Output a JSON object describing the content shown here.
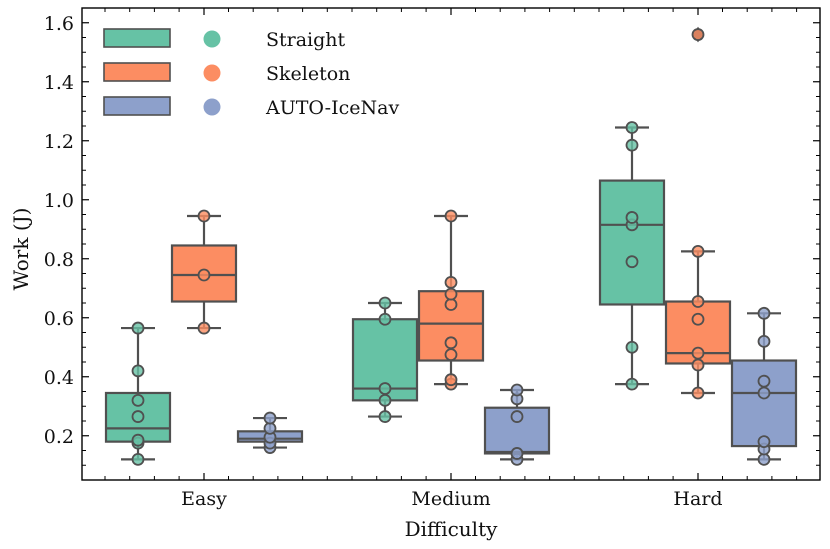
{
  "chart_data": {
    "type": "box",
    "xlabel": "Difficulty",
    "ylabel": "Work (J)",
    "ylim": [
      0.05,
      1.65
    ],
    "yticks": [
      0.2,
      0.4,
      0.6,
      0.8,
      1.0,
      1.2,
      1.4,
      1.6
    ],
    "ytick_labels": [
      "0.2",
      "0.4",
      "0.6",
      "0.8",
      "1.0",
      "1.2",
      "1.4",
      "1.6"
    ],
    "categories": [
      "Easy",
      "Medium",
      "Hard"
    ],
    "legend_position": "top-left",
    "series": [
      {
        "name": "Straight",
        "color": "#66c2a5",
        "box": [
          {
            "q1": 0.18,
            "median": 0.225,
            "q3": 0.345,
            "whisker_low": 0.12,
            "whisker_high": 0.565,
            "outliers": []
          },
          {
            "q1": 0.32,
            "median": 0.36,
            "q3": 0.595,
            "whisker_low": 0.265,
            "whisker_high": 0.65,
            "outliers": []
          },
          {
            "q1": 0.645,
            "median": 0.915,
            "q3": 1.065,
            "whisker_low": 0.375,
            "whisker_high": 1.245,
            "outliers": []
          }
        ],
        "points": [
          [
            0.12,
            0.175,
            0.185,
            0.265,
            0.32,
            0.42,
            0.565
          ],
          [
            0.265,
            0.32,
            0.36,
            0.595,
            0.65
          ],
          [
            0.375,
            0.5,
            0.79,
            0.915,
            0.94,
            1.185,
            1.245
          ]
        ]
      },
      {
        "name": "Skeleton",
        "color": "#fc8d62",
        "box": [
          {
            "q1": 0.655,
            "median": 0.745,
            "q3": 0.845,
            "whisker_low": 0.565,
            "whisker_high": 0.945,
            "outliers": []
          },
          {
            "q1": 0.455,
            "median": 0.58,
            "q3": 0.69,
            "whisker_low": 0.375,
            "whisker_high": 0.945,
            "outliers": []
          },
          {
            "q1": 0.445,
            "median": 0.48,
            "q3": 0.655,
            "whisker_low": 0.345,
            "whisker_high": 0.825,
            "outliers": [
              1.56
            ]
          }
        ],
        "points": [
          [
            0.565,
            0.745,
            0.945
          ],
          [
            0.375,
            0.39,
            0.475,
            0.515,
            0.645,
            0.68,
            0.72,
            0.945
          ],
          [
            0.345,
            0.44,
            0.48,
            0.595,
            0.655,
            0.825,
            1.56
          ]
        ]
      },
      {
        "name": "AUTO-IceNav",
        "color": "#8da0cb",
        "box": [
          {
            "q1": 0.18,
            "median": 0.19,
            "q3": 0.215,
            "whisker_low": 0.16,
            "whisker_high": 0.26,
            "outliers": []
          },
          {
            "q1": 0.14,
            "median": 0.145,
            "q3": 0.295,
            "whisker_low": 0.12,
            "whisker_high": 0.355,
            "outliers": []
          },
          {
            "q1": 0.165,
            "median": 0.345,
            "q3": 0.455,
            "whisker_low": 0.12,
            "whisker_high": 0.615,
            "outliers": []
          }
        ],
        "points": [
          [
            0.16,
            0.175,
            0.195,
            0.225,
            0.26
          ],
          [
            0.12,
            0.14,
            0.265,
            0.325,
            0.355
          ],
          [
            0.12,
            0.155,
            0.18,
            0.345,
            0.385,
            0.52,
            0.615
          ]
        ]
      }
    ]
  }
}
